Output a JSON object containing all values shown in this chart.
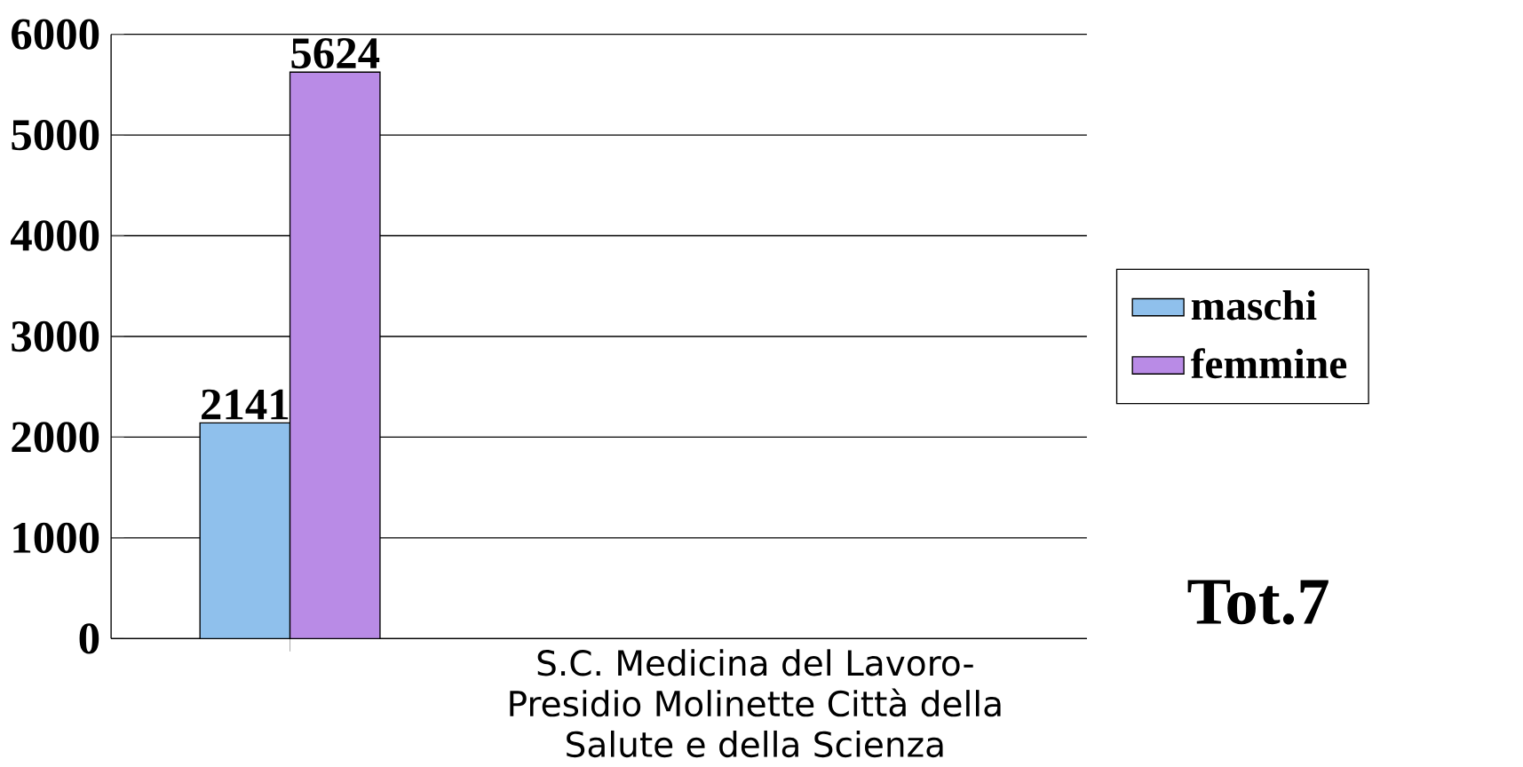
{
  "chart_data": {
    "type": "bar",
    "categories": [
      null
    ],
    "xlabel": "S.C. Medicina del Lavoro-\nPresidio Molinette  Città della\nSalute e della Scienza",
    "series": [
      {
        "name": "maschi",
        "color": "#8fc0ec",
        "values": [
          2141
        ]
      },
      {
        "name": "femmine",
        "color": "#b98be6",
        "values": [
          5624
        ]
      }
    ],
    "ylim": [
      0,
      6000
    ],
    "yticks": [
      0,
      1000,
      2000,
      3000,
      4000,
      5000,
      6000
    ],
    "grid": "y",
    "legend": "right",
    "data_labels": true,
    "annotations": [
      "Tot.7"
    ]
  }
}
